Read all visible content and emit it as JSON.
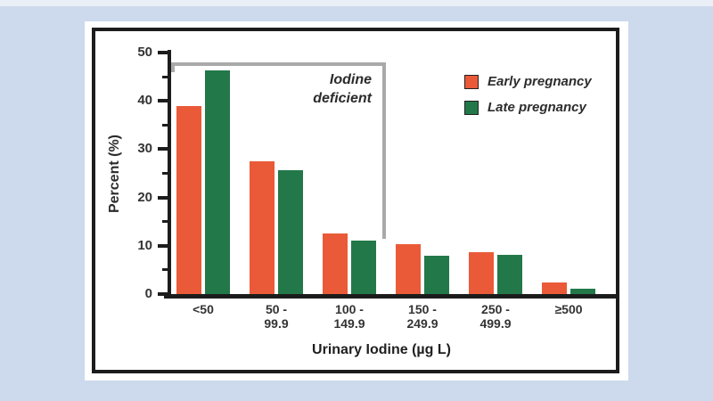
{
  "page": {
    "background_color": "#cdd9ec",
    "panel_background": "#ffffff",
    "frame_color": "#1c1c1c"
  },
  "chart_data": {
    "type": "bar",
    "title": "",
    "xlabel": "Urinary Iodine (µg L)",
    "ylabel": "Percent (%)",
    "ylim": [
      0,
      50
    ],
    "grid": false,
    "legend_position": "top-right",
    "y_major_ticks": [
      0,
      10,
      20,
      30,
      40,
      50
    ],
    "y_minor_ticks": [
      5,
      15,
      25,
      35,
      45
    ],
    "categories": [
      "<50",
      "50 -\n99.9",
      "100 -\n149.9",
      "150 -\n249.9",
      "250 -\n499.9",
      "≥500"
    ],
    "series": [
      {
        "name": "Early pregnancy",
        "color": "#ea5a38",
        "values": [
          39,
          27.5,
          12.5,
          10.4,
          8.6,
          2.4
        ]
      },
      {
        "name": "Late pregnancy",
        "color": "#237849",
        "values": [
          46.4,
          25.7,
          11,
          8,
          8.2,
          1.1
        ]
      }
    ],
    "annotation": {
      "text": "Iodine\ndeficient",
      "bracket_color": "#a9a9a9",
      "top_value": 48,
      "bottom_value": 11.5
    }
  }
}
